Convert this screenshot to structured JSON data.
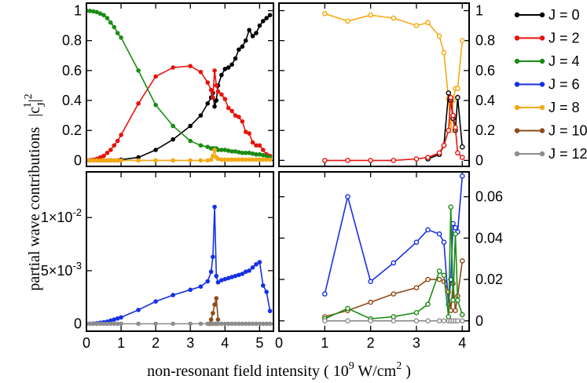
{
  "chart_data": {
    "type": "line",
    "ylabel": "partial wave contributions",
    "ylabel_math": {
      "base": "|c",
      "sub": "J",
      "sup": "1",
      "post": "|",
      "post_sup": "2"
    },
    "xlabel": {
      "pre": "non-resonant field intensity ( 10",
      "sup": "9",
      "mid": " W/cm",
      "sup2": "2",
      "post": " )"
    },
    "legend": {
      "placement": "right",
      "entries": [
        {
          "label": "J = 0",
          "color": "#000000"
        },
        {
          "label": "J = 2",
          "color": "#e8120c"
        },
        {
          "label": "J = 4",
          "color": "#1a8c14"
        },
        {
          "label": "J = 6",
          "color": "#1530e6"
        },
        {
          "label": "J = 8",
          "color": "#f5a810"
        },
        {
          "label": "J = 10",
          "color": "#8f4a18"
        },
        {
          "label": "J = 12",
          "color": "#8c8c8c"
        }
      ]
    },
    "panels": [
      {
        "id": "top-left",
        "xlim": [
          0,
          5.4
        ],
        "ylim": [
          -0.04,
          1.05
        ],
        "xticks": [
          0,
          1,
          2,
          3,
          4,
          5
        ],
        "yticks": [
          0,
          0.2,
          0.4,
          0.6,
          0.8,
          1
        ],
        "yticklabels": [
          "0",
          "0.2",
          "0.4",
          "0.6",
          "0.8",
          "1"
        ],
        "y_side": "left",
        "x_labels": false,
        "marker": "filled",
        "series": [
          {
            "name": "J = 0",
            "color": "#000000",
            "x": [
              0,
              0.1,
              0.2,
              0.3,
              0.4,
              0.5,
              0.6,
              0.7,
              0.8,
              0.9,
              1.0,
              1.5,
              2.0,
              2.5,
              3.0,
              3.3,
              3.5,
              3.6,
              3.65,
              3.7,
              3.75,
              3.8,
              3.9,
              4.0,
              4.1,
              4.2,
              4.3,
              4.4,
              4.5,
              4.6,
              4.7,
              4.8,
              4.9,
              5.0,
              5.1,
              5.2,
              5.3
            ],
            "y": [
              0,
              0,
              0,
              0,
              0,
              0,
              0,
              0,
              0,
              0,
              0.005,
              0.02,
              0.07,
              0.14,
              0.23,
              0.3,
              0.38,
              0.42,
              0.45,
              0.36,
              0.4,
              0.5,
              0.57,
              0.61,
              0.62,
              0.64,
              0.68,
              0.74,
              0.76,
              0.8,
              0.87,
              0.83,
              0.85,
              0.9,
              0.93,
              0.95,
              0.97
            ]
          },
          {
            "name": "J = 2",
            "color": "#e8120c",
            "x": [
              0,
              0.1,
              0.2,
              0.3,
              0.4,
              0.5,
              0.6,
              0.7,
              0.8,
              0.9,
              1.0,
              1.5,
              2.0,
              2.5,
              3.0,
              3.3,
              3.5,
              3.6,
              3.65,
              3.7,
              3.75,
              3.8,
              3.9,
              4.0,
              4.1,
              4.2,
              4.3,
              4.4,
              4.5,
              4.6,
              4.7,
              4.8,
              4.9,
              5.0,
              5.1,
              5.2,
              5.3
            ],
            "y": [
              0,
              0.002,
              0.005,
              0.01,
              0.02,
              0.03,
              0.05,
              0.07,
              0.1,
              0.13,
              0.17,
              0.38,
              0.56,
              0.62,
              0.63,
              0.59,
              0.52,
              0.47,
              0.42,
              0.6,
              0.5,
              0.46,
              0.44,
              0.41,
              0.35,
              0.33,
              0.3,
              0.29,
              0.26,
              0.19,
              0.18,
              0.12,
              0.1,
              0.1,
              0.07,
              0.04,
              0.03
            ]
          },
          {
            "name": "J = 4",
            "color": "#1a8c14",
            "x": [
              0,
              0.1,
              0.2,
              0.3,
              0.4,
              0.5,
              0.6,
              0.7,
              0.8,
              0.9,
              1.0,
              1.5,
              2.0,
              2.5,
              3.0,
              3.3,
              3.5,
              3.6,
              3.65,
              3.7,
              3.75,
              3.8,
              3.9,
              4.0,
              4.1,
              4.2,
              4.3,
              4.4,
              4.5,
              4.6,
              4.7,
              4.8,
              4.9,
              5.0,
              5.1,
              5.2,
              5.3
            ],
            "y": [
              1.0,
              0.998,
              0.995,
              0.99,
              0.98,
              0.97,
              0.95,
              0.92,
              0.89,
              0.85,
              0.82,
              0.6,
              0.37,
              0.23,
              0.13,
              0.1,
              0.09,
              0.08,
              0.08,
              0.08,
              0.08,
              0.07,
              0.07,
              0.07,
              0.065,
              0.06,
              0.06,
              0.055,
              0.05,
              0.05,
              0.05,
              0.045,
              0.04,
              0.04,
              0.035,
              0.03,
              0.02
            ]
          },
          {
            "name": "J = 8",
            "color": "#f5a810",
            "x": [
              0,
              0.1,
              0.2,
              0.3,
              0.4,
              0.5,
              0.6,
              0.7,
              0.8,
              0.9,
              1.0,
              1.5,
              2.0,
              2.5,
              3.0,
              3.3,
              3.5,
              3.6,
              3.65,
              3.7,
              3.75,
              3.8,
              3.9,
              4.0,
              4.1,
              4.2,
              4.3,
              4.4,
              4.5,
              4.6,
              4.7,
              4.8,
              4.9,
              5.0,
              5.1,
              5.2,
              5.3
            ],
            "y": [
              0,
              0,
              0,
              0,
              0,
              0,
              0,
              0,
              0,
              0,
              0,
              0,
              0,
              0,
              0,
              0,
              0,
              0.005,
              0.03,
              0.07,
              0.02,
              0.01,
              0.005,
              0.005,
              0.005,
              0.005,
              0.005,
              0.005,
              0.005,
              0.005,
              0.005,
              0.005,
              0.005,
              0.005,
              0.005,
              0.005,
              0.005
            ]
          }
        ]
      },
      {
        "id": "top-right",
        "xlim": [
          0,
          4.15
        ],
        "ylim": [
          -0.04,
          1.05
        ],
        "xticks": [
          0,
          1,
          2,
          3,
          4
        ],
        "yticks": [
          0,
          0.2,
          0.4,
          0.6,
          0.8,
          1
        ],
        "yticklabels": [
          "0",
          "0.2",
          "0.4",
          "0.6",
          "0.8",
          "1"
        ],
        "y_side": "right",
        "x_labels": false,
        "marker": "open",
        "series": [
          {
            "name": "J = 8",
            "color": "#f5a810",
            "x": [
              1.0,
              1.5,
              2.0,
              2.5,
              3.0,
              3.25,
              3.5,
              3.6,
              3.7,
              3.75,
              3.8,
              3.85,
              3.9,
              4.0
            ],
            "y": [
              0.98,
              0.93,
              0.97,
              0.95,
              0.9,
              0.92,
              0.83,
              0.72,
              0.41,
              0.2,
              0.4,
              0.48,
              0.48,
              0.8
            ]
          },
          {
            "name": "J = 0",
            "color": "#000000",
            "x": [
              3.25,
              3.5,
              3.6,
              3.7,
              3.75,
              3.8,
              3.85,
              3.9,
              4.0
            ],
            "y": [
              0.01,
              0.04,
              0.1,
              0.45,
              0.4,
              0.28,
              0.2,
              0.42,
              0.09
            ]
          },
          {
            "name": "J = 2",
            "color": "#e8120c",
            "x": [
              1.0,
              1.5,
              2.0,
              2.5,
              3.0,
              3.25,
              3.5,
              3.6,
              3.7,
              3.75,
              3.8,
              3.85,
              3.9,
              4.0
            ],
            "y": [
              0,
              0,
              0,
              0,
              0.01,
              0.02,
              0.05,
              0.1,
              0.2,
              0.42,
              0.3,
              0.22,
              0.05,
              0.02
            ]
          }
        ]
      },
      {
        "id": "bottom-left",
        "xlim": [
          0,
          5.4
        ],
        "ylim": [
          -0.0007,
          0.0143
        ],
        "xticks": [
          0,
          1,
          2,
          3,
          4,
          5
        ],
        "yticks": [
          0,
          0.005,
          0.01
        ],
        "yticklabels": [
          {
            "m": "0"
          },
          {
            "m": "5×10",
            "e": "-3"
          },
          {
            "m": "1×10",
            "e": "-2"
          }
        ],
        "y_side": "left",
        "x_labels": true,
        "marker": "filled",
        "series": [
          {
            "name": "J = 6",
            "color": "#1530e6",
            "x": [
              0,
              0.1,
              0.2,
              0.3,
              0.4,
              0.5,
              0.6,
              0.7,
              0.8,
              0.9,
              1.0,
              1.5,
              2.0,
              2.5,
              3.0,
              3.3,
              3.5,
              3.6,
              3.65,
              3.7,
              3.75,
              3.8,
              3.9,
              4.0,
              4.1,
              4.2,
              4.3,
              4.4,
              4.5,
              4.6,
              4.7,
              4.8,
              4.9,
              5.0,
              5.1,
              5.2,
              5.3
            ],
            "y": [
              0,
              1e-05,
              2e-05,
              5e-05,
              0.0001,
              0.00015,
              0.0002,
              0.0003,
              0.0004,
              0.0005,
              0.0006,
              0.0013,
              0.0021,
              0.0027,
              0.0032,
              0.0035,
              0.004,
              0.0049,
              0.0063,
              0.011,
              0.0045,
              0.0039,
              0.0041,
              0.0042,
              0.0043,
              0.0044,
              0.0045,
              0.0046,
              0.0047,
              0.0049,
              0.005,
              0.0053,
              0.0056,
              0.0058,
              0.0036,
              0.003,
              0.0012
            ]
          },
          {
            "name": "J = 10",
            "color": "#8f4a18",
            "x": [
              3.55,
              3.6,
              3.65,
              3.7,
              3.75,
              3.8
            ],
            "y": [
              0,
              0.0004,
              0.001,
              0.0018,
              0.0024,
              0.0004
            ]
          },
          {
            "name": "J = 12",
            "color": "#8c8c8c",
            "x": [
              0,
              0.1,
              0.2,
              0.3,
              0.4,
              0.5,
              0.6,
              0.7,
              0.8,
              0.9,
              1.0,
              1.5,
              2.0,
              2.5,
              3.0,
              3.3,
              3.5,
              3.6,
              3.65,
              3.7,
              3.75,
              3.8,
              3.9,
              4.0,
              4.1,
              4.2,
              4.3,
              4.4,
              4.5,
              4.6,
              4.7,
              4.8,
              4.9,
              5.0,
              5.1,
              5.2,
              5.3
            ],
            "y": [
              0,
              0,
              0,
              0,
              0,
              0,
              0,
              0,
              0,
              0,
              0,
              0,
              0,
              0,
              0,
              0,
              0,
              0,
              0,
              0,
              0,
              0,
              0,
              0,
              0,
              0,
              0,
              0,
              0,
              0,
              0,
              0,
              0,
              0,
              0,
              0,
              0
            ]
          }
        ]
      },
      {
        "id": "bottom-right",
        "xlim": [
          0,
          4.15
        ],
        "ylim": [
          -0.005,
          0.072
        ],
        "xticks": [
          0,
          1,
          2,
          3,
          4
        ],
        "yticks": [
          0,
          0.02,
          0.04,
          0.06
        ],
        "yticklabels": [
          "0",
          "0.02",
          "0.04",
          "0.06"
        ],
        "y_side": "right",
        "x_labels": true,
        "marker": "open",
        "series": [
          {
            "name": "J = 6",
            "color": "#1530e6",
            "x": [
              1.0,
              1.5,
              2.0,
              2.5,
              3.0,
              3.25,
              3.5,
              3.6,
              3.7,
              3.75,
              3.8,
              3.85,
              3.9,
              4.0
            ],
            "y": [
              0.013,
              0.06,
              0.019,
              0.028,
              0.038,
              0.044,
              0.042,
              0.038,
              0.008,
              0.02,
              0.047,
              0.045,
              0.043,
              0.07
            ]
          },
          {
            "name": "J = 10",
            "color": "#8f4a18",
            "x": [
              1.0,
              1.5,
              2.0,
              2.5,
              3.0,
              3.25,
              3.5,
              3.6,
              3.7,
              3.75,
              3.8,
              3.85,
              3.9,
              4.0
            ],
            "y": [
              0.002,
              0.005,
              0.009,
              0.013,
              0.016,
              0.02,
              0.02,
              0.019,
              0.014,
              0.005,
              0.018,
              0.005,
              0.012,
              0.029
            ]
          },
          {
            "name": "J = 4",
            "color": "#1a8c14",
            "x": [
              1.0,
              1.5,
              2.0,
              2.5,
              3.0,
              3.25,
              3.5,
              3.6,
              3.7,
              3.75,
              3.8,
              3.85,
              3.9,
              4.0
            ],
            "y": [
              0.001,
              0.006,
              0.001,
              0.002,
              0.004,
              0.008,
              0.024,
              0.022,
              0.002,
              0.055,
              0.01,
              0.042,
              0.01,
              0.003
            ]
          },
          {
            "name": "J = 12",
            "color": "#8c8c8c",
            "x": [
              1.0,
              1.5,
              2.0,
              2.5,
              3.0,
              3.25,
              3.5,
              3.6,
              3.7,
              3.75,
              3.8,
              3.85,
              3.9,
              4.0
            ],
            "y": [
              0,
              0,
              0,
              0,
              0,
              0,
              0,
              0,
              0,
              0,
              0,
              0,
              0,
              0
            ]
          }
        ]
      }
    ]
  }
}
